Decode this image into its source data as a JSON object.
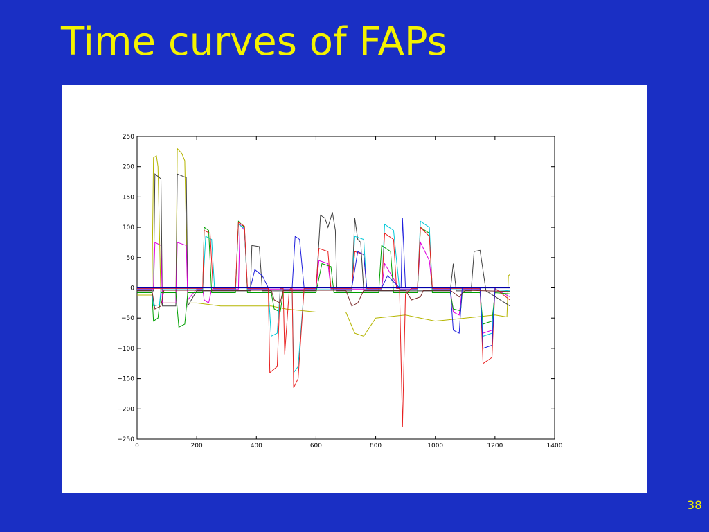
{
  "slide": {
    "title": "Time curves of FAPs",
    "page_number": "38",
    "background_color": "#1a2fc4",
    "title_color": "#f4f200"
  },
  "chart_data": {
    "type": "line",
    "title": "",
    "xlabel": "",
    "ylabel": "",
    "xlim": [
      0,
      1400
    ],
    "ylim": [
      -250,
      250
    ],
    "xticks": [
      0,
      200,
      400,
      600,
      800,
      1000,
      1200,
      1400
    ],
    "yticks": [
      250,
      200,
      150,
      100,
      50,
      0,
      -50,
      -100,
      -150,
      -200,
      -250
    ],
    "grid": false,
    "legend": "none",
    "series": [
      {
        "color": "#b5b500",
        "values": [
          [
            0,
            -12
          ],
          [
            50,
            -12
          ],
          [
            55,
            215
          ],
          [
            65,
            218
          ],
          [
            70,
            200
          ],
          [
            80,
            -25
          ],
          [
            130,
            -25
          ],
          [
            135,
            230
          ],
          [
            150,
            222
          ],
          [
            160,
            210
          ],
          [
            170,
            -25
          ],
          [
            200,
            -25
          ],
          [
            280,
            -30
          ],
          [
            450,
            -30
          ],
          [
            500,
            -35
          ],
          [
            600,
            -40
          ],
          [
            700,
            -40
          ],
          [
            730,
            -75
          ],
          [
            760,
            -80
          ],
          [
            800,
            -50
          ],
          [
            900,
            -45
          ],
          [
            950,
            -50
          ],
          [
            1000,
            -55
          ],
          [
            1100,
            -50
          ],
          [
            1200,
            -45
          ],
          [
            1240,
            -48
          ],
          [
            1245,
            20
          ],
          [
            1250,
            22
          ]
        ]
      },
      {
        "color": "#404040",
        "values": [
          [
            0,
            -5
          ],
          [
            55,
            -5
          ],
          [
            60,
            188
          ],
          [
            80,
            180
          ],
          [
            85,
            -30
          ],
          [
            130,
            -30
          ],
          [
            135,
            188
          ],
          [
            165,
            182
          ],
          [
            170,
            -30
          ],
          [
            200,
            -5
          ],
          [
            350,
            -5
          ],
          [
            380,
            -5
          ],
          [
            385,
            70
          ],
          [
            410,
            68
          ],
          [
            420,
            -5
          ],
          [
            600,
            -5
          ],
          [
            615,
            120
          ],
          [
            630,
            115
          ],
          [
            640,
            100
          ],
          [
            655,
            125
          ],
          [
            665,
            95
          ],
          [
            670,
            -5
          ],
          [
            720,
            -5
          ],
          [
            730,
            115
          ],
          [
            740,
            80
          ],
          [
            750,
            75
          ],
          [
            760,
            -5
          ],
          [
            990,
            -5
          ],
          [
            1000,
            -5
          ],
          [
            1050,
            -5
          ],
          [
            1060,
            40
          ],
          [
            1070,
            -5
          ],
          [
            1100,
            -5
          ],
          [
            1120,
            -5
          ],
          [
            1130,
            60
          ],
          [
            1150,
            62
          ],
          [
            1170,
            -5
          ],
          [
            1250,
            -30
          ]
        ]
      },
      {
        "color": "#dd00dd",
        "values": [
          [
            0,
            -2
          ],
          [
            55,
            -2
          ],
          [
            60,
            75
          ],
          [
            80,
            70
          ],
          [
            85,
            -25
          ],
          [
            130,
            -25
          ],
          [
            135,
            75
          ],
          [
            165,
            70
          ],
          [
            170,
            -20
          ],
          [
            200,
            -2
          ],
          [
            220,
            -2
          ],
          [
            225,
            -20
          ],
          [
            240,
            -25
          ],
          [
            250,
            -2
          ],
          [
            340,
            -2
          ],
          [
            345,
            105
          ],
          [
            360,
            95
          ],
          [
            370,
            -2
          ],
          [
            600,
            -2
          ],
          [
            610,
            45
          ],
          [
            640,
            40
          ],
          [
            650,
            -2
          ],
          [
            820,
            -2
          ],
          [
            830,
            40
          ],
          [
            880,
            -2
          ],
          [
            940,
            -2
          ],
          [
            950,
            75
          ],
          [
            980,
            45
          ],
          [
            990,
            -2
          ],
          [
            1050,
            -2
          ],
          [
            1060,
            -40
          ],
          [
            1080,
            -45
          ],
          [
            1090,
            -2
          ],
          [
            1150,
            -2
          ],
          [
            1160,
            -75
          ],
          [
            1190,
            -70
          ],
          [
            1200,
            -2
          ],
          [
            1250,
            -15
          ]
        ]
      },
      {
        "color": "#00a000",
        "values": [
          [
            0,
            -8
          ],
          [
            50,
            -8
          ],
          [
            55,
            -55
          ],
          [
            70,
            -50
          ],
          [
            80,
            -8
          ],
          [
            130,
            -8
          ],
          [
            140,
            -65
          ],
          [
            160,
            -60
          ],
          [
            170,
            -8
          ],
          [
            220,
            -8
          ],
          [
            225,
            100
          ],
          [
            240,
            95
          ],
          [
            250,
            -8
          ],
          [
            330,
            -8
          ],
          [
            340,
            110
          ],
          [
            360,
            100
          ],
          [
            370,
            -8
          ],
          [
            450,
            -8
          ],
          [
            460,
            -35
          ],
          [
            480,
            -40
          ],
          [
            490,
            -8
          ],
          [
            600,
            -8
          ],
          [
            620,
            40
          ],
          [
            650,
            35
          ],
          [
            660,
            -8
          ],
          [
            810,
            -8
          ],
          [
            820,
            70
          ],
          [
            850,
            60
          ],
          [
            860,
            -8
          ],
          [
            940,
            -8
          ],
          [
            950,
            100
          ],
          [
            980,
            90
          ],
          [
            990,
            -8
          ],
          [
            1050,
            -8
          ],
          [
            1060,
            -35
          ],
          [
            1085,
            -38
          ],
          [
            1090,
            -8
          ],
          [
            1150,
            -8
          ],
          [
            1160,
            -60
          ],
          [
            1190,
            -55
          ],
          [
            1200,
            -8
          ],
          [
            1250,
            -10
          ]
        ]
      },
      {
        "color": "#00c8d8",
        "values": [
          [
            0,
            -3
          ],
          [
            50,
            -3
          ],
          [
            55,
            -30
          ],
          [
            75,
            -28
          ],
          [
            80,
            -3
          ],
          [
            220,
            -3
          ],
          [
            230,
            85
          ],
          [
            250,
            80
          ],
          [
            260,
            -3
          ],
          [
            330,
            -3
          ],
          [
            340,
            105
          ],
          [
            360,
            98
          ],
          [
            370,
            -3
          ],
          [
            440,
            -3
          ],
          [
            450,
            -80
          ],
          [
            470,
            -75
          ],
          [
            480,
            -3
          ],
          [
            520,
            -3
          ],
          [
            525,
            -140
          ],
          [
            540,
            -130
          ],
          [
            560,
            -3
          ],
          [
            720,
            -3
          ],
          [
            730,
            85
          ],
          [
            760,
            80
          ],
          [
            770,
            -3
          ],
          [
            820,
            -3
          ],
          [
            830,
            105
          ],
          [
            860,
            95
          ],
          [
            880,
            -3
          ],
          [
            940,
            -3
          ],
          [
            950,
            110
          ],
          [
            980,
            100
          ],
          [
            990,
            -3
          ],
          [
            1150,
            -3
          ],
          [
            1160,
            -80
          ],
          [
            1190,
            -75
          ],
          [
            1200,
            -3
          ],
          [
            1250,
            -5
          ]
        ]
      },
      {
        "color": "#e82020",
        "values": [
          [
            0,
            -1
          ],
          [
            220,
            -1
          ],
          [
            225,
            95
          ],
          [
            245,
            90
          ],
          [
            255,
            -1
          ],
          [
            330,
            -1
          ],
          [
            340,
            108
          ],
          [
            360,
            102
          ],
          [
            370,
            -1
          ],
          [
            440,
            -1
          ],
          [
            445,
            -140
          ],
          [
            470,
            -130
          ],
          [
            480,
            -1
          ],
          [
            490,
            -1
          ],
          [
            495,
            -110
          ],
          [
            510,
            -5
          ],
          [
            515,
            -1
          ],
          [
            520,
            -1
          ],
          [
            525,
            -165
          ],
          [
            540,
            -150
          ],
          [
            560,
            -1
          ],
          [
            600,
            -1
          ],
          [
            610,
            65
          ],
          [
            640,
            60
          ],
          [
            650,
            -1
          ],
          [
            720,
            -1
          ],
          [
            730,
            60
          ],
          [
            760,
            55
          ],
          [
            770,
            -1
          ],
          [
            820,
            -1
          ],
          [
            830,
            90
          ],
          [
            860,
            80
          ],
          [
            870,
            -1
          ],
          [
            880,
            -1
          ],
          [
            890,
            -230
          ],
          [
            900,
            -10
          ],
          [
            920,
            -1
          ],
          [
            940,
            -1
          ],
          [
            950,
            100
          ],
          [
            980,
            85
          ],
          [
            990,
            -1
          ],
          [
            1150,
            -1
          ],
          [
            1160,
            -125
          ],
          [
            1190,
            -115
          ],
          [
            1200,
            -1
          ],
          [
            1250,
            -20
          ]
        ]
      },
      {
        "color": "#2020dd",
        "values": [
          [
            0,
            0
          ],
          [
            200,
            0
          ],
          [
            220,
            0
          ],
          [
            300,
            0
          ],
          [
            380,
            0
          ],
          [
            395,
            30
          ],
          [
            420,
            20
          ],
          [
            440,
            0
          ],
          [
            520,
            0
          ],
          [
            530,
            85
          ],
          [
            545,
            80
          ],
          [
            560,
            0
          ],
          [
            600,
            0
          ],
          [
            650,
            0
          ],
          [
            700,
            0
          ],
          [
            720,
            0
          ],
          [
            740,
            60
          ],
          [
            760,
            55
          ],
          [
            770,
            0
          ],
          [
            820,
            0
          ],
          [
            840,
            20
          ],
          [
            880,
            0
          ],
          [
            885,
            0
          ],
          [
            890,
            115
          ],
          [
            900,
            0
          ],
          [
            920,
            0
          ],
          [
            1050,
            0
          ],
          [
            1060,
            -70
          ],
          [
            1080,
            -75
          ],
          [
            1090,
            0
          ],
          [
            1150,
            0
          ],
          [
            1160,
            -100
          ],
          [
            1190,
            -95
          ],
          [
            1200,
            0
          ],
          [
            1250,
            0
          ]
        ]
      },
      {
        "color": "#7a2a2a",
        "values": [
          [
            0,
            -4
          ],
          [
            50,
            -4
          ],
          [
            60,
            -35
          ],
          [
            80,
            -30
          ],
          [
            90,
            -4
          ],
          [
            300,
            -4
          ],
          [
            450,
            -4
          ],
          [
            460,
            -20
          ],
          [
            480,
            -25
          ],
          [
            490,
            -4
          ],
          [
            700,
            -4
          ],
          [
            720,
            -30
          ],
          [
            740,
            -25
          ],
          [
            760,
            -4
          ],
          [
            900,
            -4
          ],
          [
            920,
            -20
          ],
          [
            950,
            -15
          ],
          [
            960,
            -4
          ],
          [
            1000,
            -4
          ],
          [
            1050,
            -4
          ],
          [
            1080,
            -15
          ],
          [
            1100,
            -4
          ],
          [
            1250,
            -6
          ]
        ]
      }
    ]
  }
}
